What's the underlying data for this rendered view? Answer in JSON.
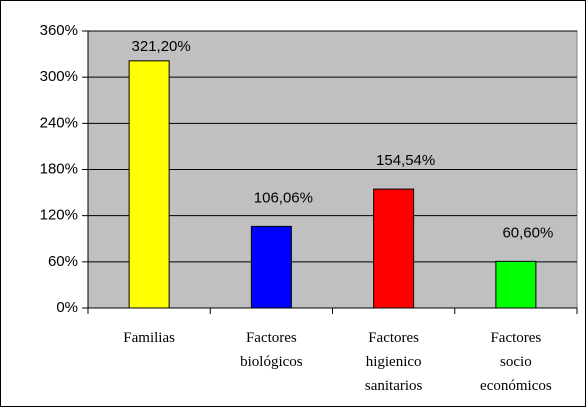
{
  "chart_data": {
    "type": "bar",
    "categories": [
      "Familias",
      "Factores biológicos",
      "Factores higienico sanitarios",
      "Factores socio económicos"
    ],
    "series": [
      {
        "name": null,
        "colors": [
          "#ffff00",
          "#0000ff",
          "#ff0000",
          "#00ff00"
        ],
        "values": [
          321.2,
          106.06,
          154.54,
          60.6
        ],
        "value_labels": [
          "321,20%",
          "106,06%",
          "154,54%",
          "60,60%"
        ]
      }
    ],
    "ylim": [
      0,
      360
    ],
    "yticks": [
      {
        "value": 0,
        "label": "0%"
      },
      {
        "value": 60,
        "label": "60%"
      },
      {
        "value": 120,
        "label": "120%"
      },
      {
        "value": 180,
        "label": "180%"
      },
      {
        "value": 240,
        "label": "240%"
      },
      {
        "value": 300,
        "label": "300%"
      },
      {
        "value": 360,
        "label": "360%"
      }
    ],
    "grid": true
  }
}
